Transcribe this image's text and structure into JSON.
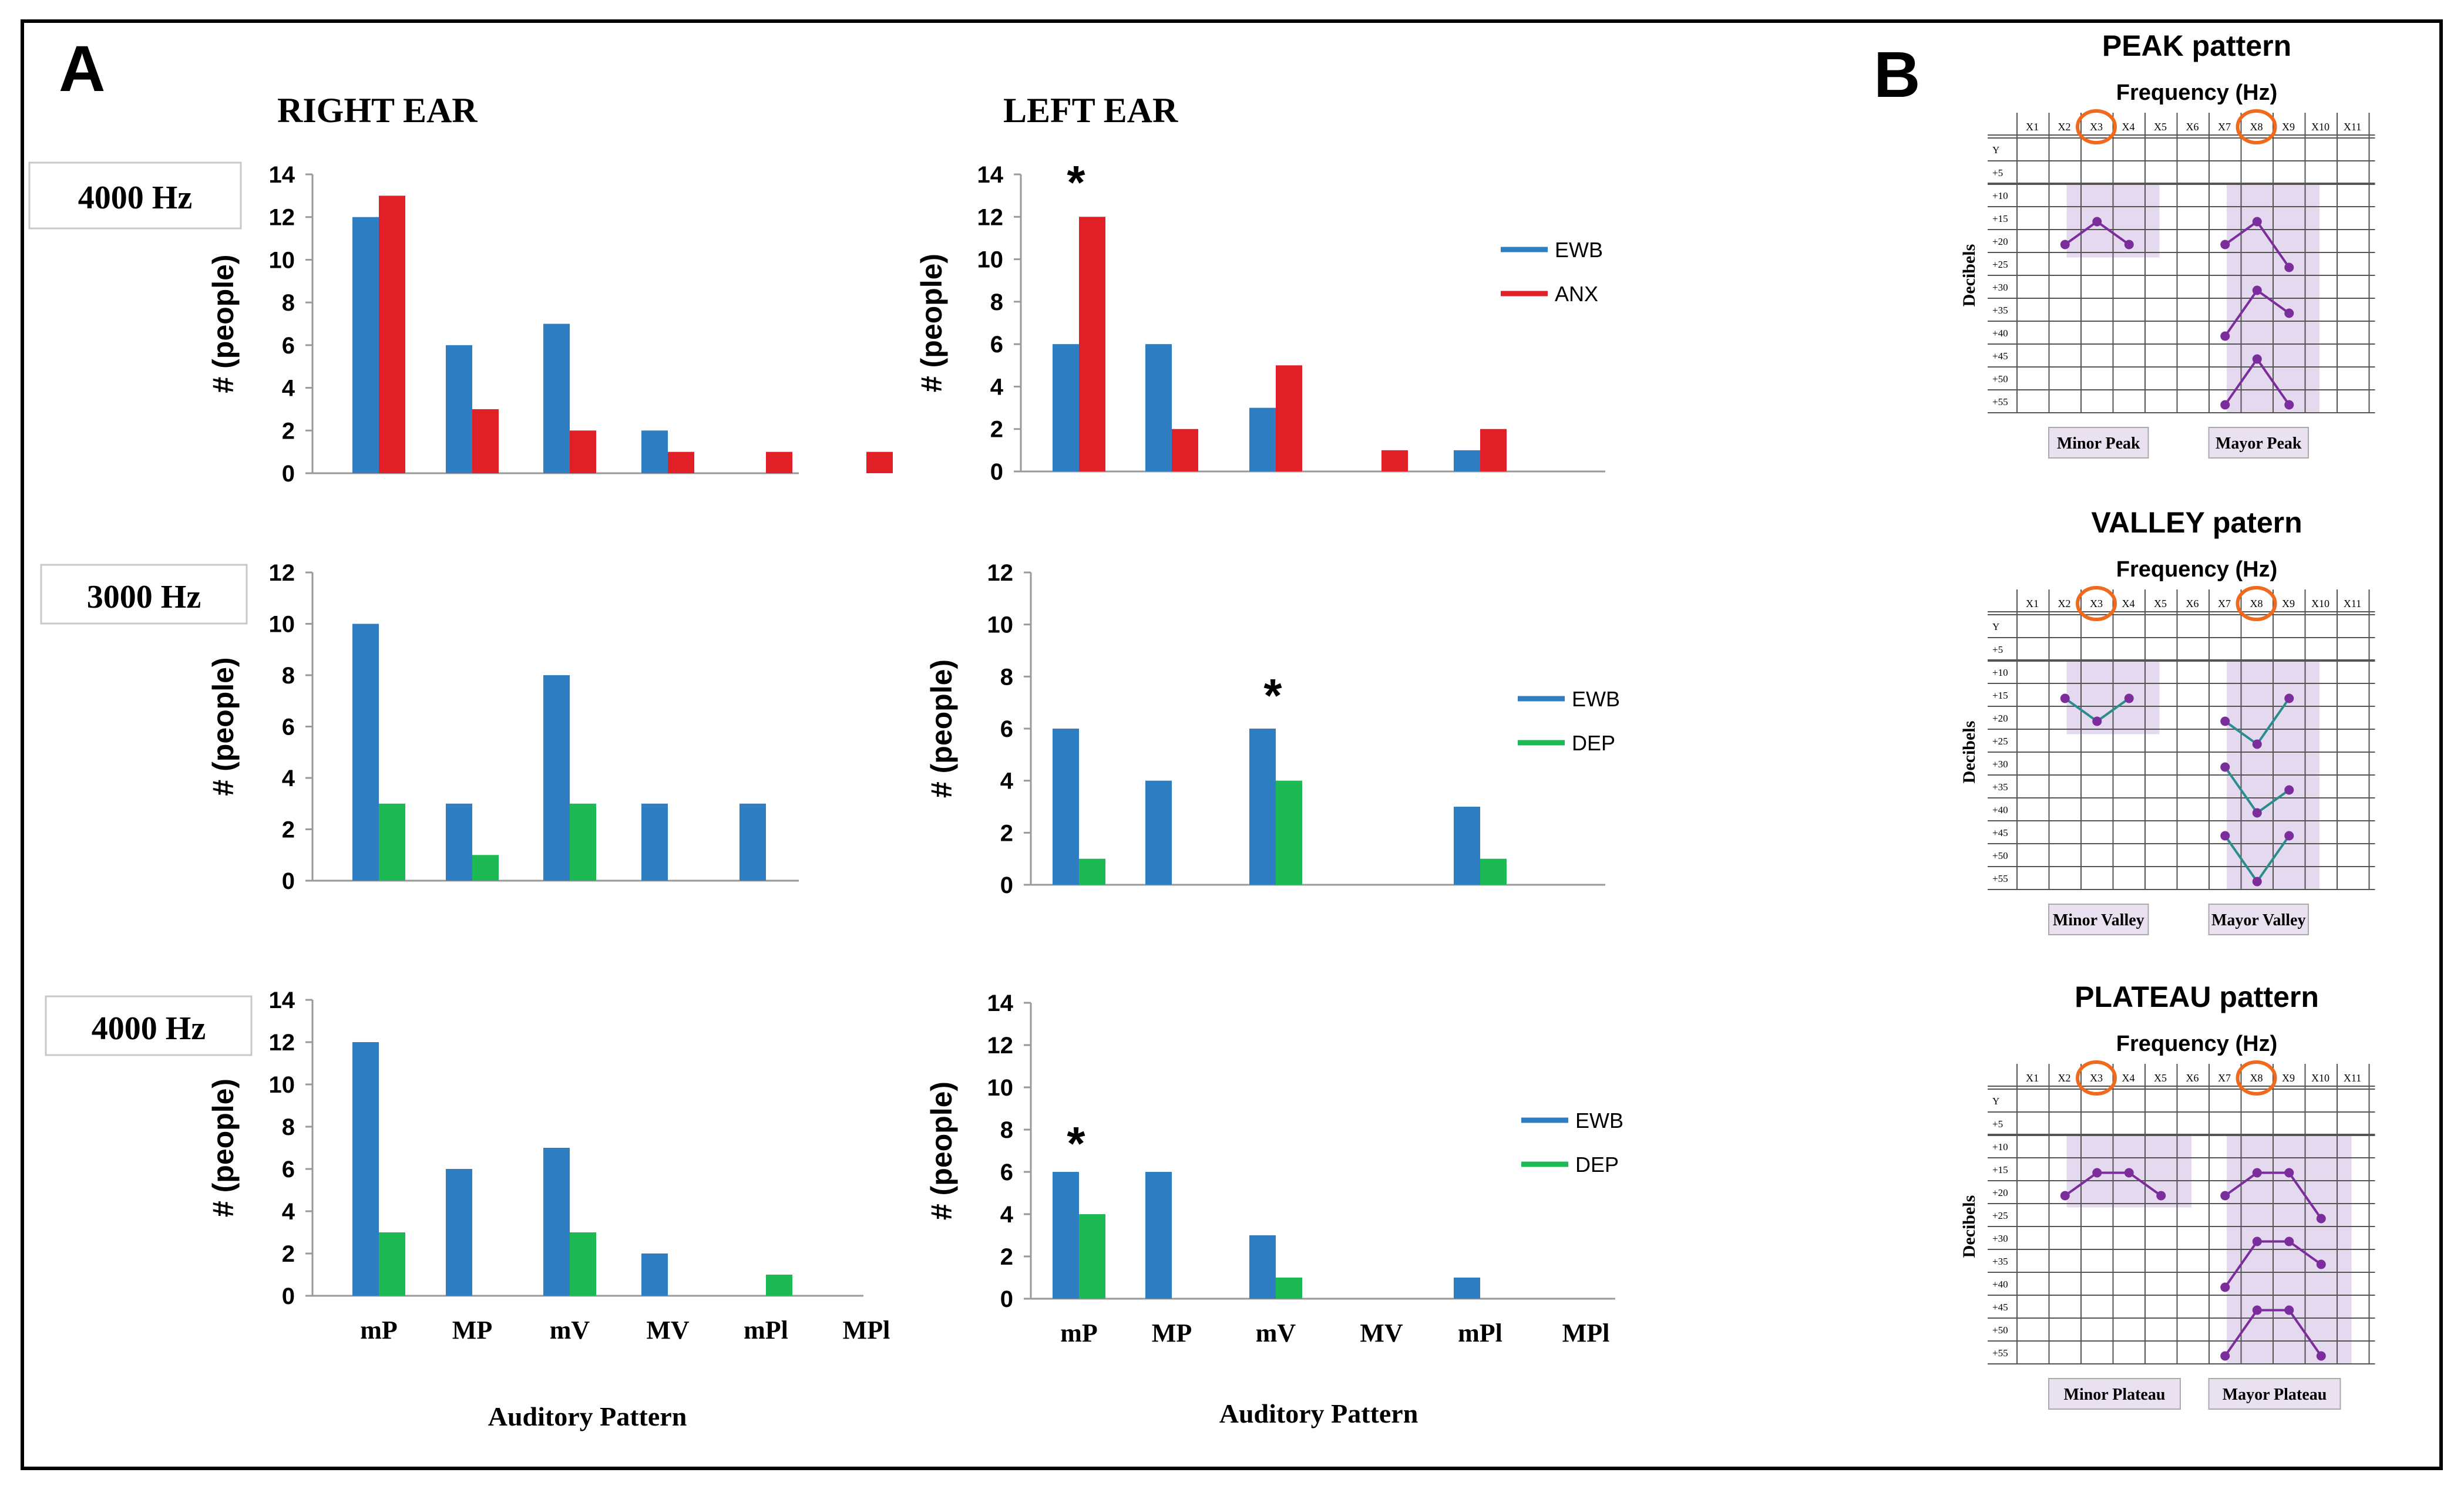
{
  "panel_labels": {
    "a": "A",
    "b": "B"
  },
  "ear_headers": {
    "right": "RIGHT EAR",
    "left": "LEFT EAR"
  },
  "row_labels": [
    "4000 Hz",
    "3000 Hz",
    "4000 Hz"
  ],
  "colors": {
    "ewb": "#2E7EC1",
    "anx": "#E01F26",
    "dep": "#1DB954",
    "purple": "#7B2D9C",
    "teal": "#2A8C8C",
    "band": "#E4D9EE",
    "label_box": "#E9E1F0",
    "orange": "#F06A1D"
  },
  "chart_data": [
    {
      "id": "r4000_right",
      "type": "bar",
      "categories": [
        "mP",
        "MP",
        "mV",
        "MV",
        "mPl",
        "MPl"
      ],
      "series": [
        {
          "name": "EWB",
          "values": [
            12,
            6,
            7,
            2,
            0,
            0
          ]
        },
        {
          "name": "ANX",
          "values": [
            13,
            3,
            2,
            1,
            1,
            1
          ]
        }
      ],
      "ylim": [
        0,
        14
      ],
      "yticks": [
        0,
        2,
        4,
        6,
        8,
        10,
        12,
        14
      ],
      "ylabel": "# (people)",
      "legend": null,
      "star": null
    },
    {
      "id": "r4000_left",
      "type": "bar",
      "categories": [
        "mP",
        "MP",
        "mV",
        "MV",
        "mPl",
        "MPl"
      ],
      "series": [
        {
          "name": "EWB",
          "values": [
            6,
            6,
            3,
            0,
            1,
            0
          ]
        },
        {
          "name": "ANX",
          "values": [
            12,
            2,
            5,
            1,
            2,
            0
          ]
        }
      ],
      "ylim": [
        0,
        14
      ],
      "yticks": [
        0,
        2,
        4,
        6,
        8,
        10,
        12,
        14
      ],
      "ylabel": "# (people)",
      "legend": [
        "EWB",
        "ANX"
      ],
      "star": {
        "category": "mP",
        "text": "*"
      }
    },
    {
      "id": "r3000_right",
      "type": "bar",
      "categories": [
        "mP",
        "MP",
        "mV",
        "MV",
        "mPl",
        "MPl"
      ],
      "series": [
        {
          "name": "EWB",
          "values": [
            10,
            3,
            8,
            3,
            3,
            0
          ]
        },
        {
          "name": "DEP",
          "values": [
            3,
            1,
            3,
            0,
            0,
            0
          ]
        }
      ],
      "ylim": [
        0,
        12
      ],
      "yticks": [
        0,
        2,
        4,
        6,
        8,
        10,
        12
      ],
      "ylabel": "# (people)",
      "legend": null,
      "star": null
    },
    {
      "id": "r3000_left",
      "type": "bar",
      "categories": [
        "mP",
        "MP",
        "mV",
        "MV",
        "mPl",
        "MPl"
      ],
      "series": [
        {
          "name": "EWB",
          "values": [
            6,
            4,
            6,
            0,
            3,
            0
          ]
        },
        {
          "name": "DEP",
          "values": [
            1,
            0,
            4,
            0,
            1,
            0
          ]
        }
      ],
      "ylim": [
        0,
        12
      ],
      "yticks": [
        0,
        2,
        4,
        6,
        8,
        10,
        12
      ],
      "ylabel": "# (people)",
      "legend": [
        "EWB",
        "DEP"
      ],
      "star": {
        "category": "mV",
        "text": "*"
      }
    },
    {
      "id": "r4000b_right",
      "type": "bar",
      "categories": [
        "mP",
        "MP",
        "mV",
        "MV",
        "mPl",
        "MPl"
      ],
      "series": [
        {
          "name": "EWB",
          "values": [
            12,
            6,
            7,
            2,
            0,
            0
          ]
        },
        {
          "name": "DEP",
          "values": [
            3,
            0,
            3,
            0,
            1,
            0
          ]
        }
      ],
      "ylim": [
        0,
        14
      ],
      "yticks": [
        0,
        2,
        4,
        6,
        8,
        10,
        12,
        14
      ],
      "ylabel": "# (people)",
      "xlabel": "Auditory  Pattern",
      "legend": null,
      "star": null
    },
    {
      "id": "r4000b_left",
      "type": "bar",
      "categories": [
        "mP",
        "MP",
        "mV",
        "MV",
        "mPl",
        "MPl"
      ],
      "series": [
        {
          "name": "EWB",
          "values": [
            6,
            6,
            3,
            0,
            1,
            0
          ]
        },
        {
          "name": "DEP",
          "values": [
            4,
            0,
            1,
            0,
            0,
            0
          ]
        }
      ],
      "ylim": [
        0,
        14
      ],
      "yticks": [
        0,
        2,
        4,
        6,
        8,
        10,
        12,
        14
      ],
      "ylabel": "# (people)",
      "xlabel": "Auditory  Pattern",
      "legend": [
        "EWB",
        "DEP"
      ],
      "star": {
        "category": "mP",
        "text": "*"
      }
    }
  ],
  "audiograms": {
    "freq_labels": [
      "X1",
      "X2",
      "X3",
      "X4",
      "X5",
      "X6",
      "X7",
      "X8",
      "X9",
      "X10",
      "X11"
    ],
    "db_labels": [
      "Y",
      "+5",
      "+10",
      "+15",
      "+20",
      "+25",
      "+30",
      "+35",
      "+40",
      "+45",
      "+50",
      "+55"
    ],
    "ylabel": "Decibels",
    "freq_title": "Frequency  (Hz)",
    "circled": [
      "X3",
      "X8"
    ],
    "panels": [
      {
        "title": "PEAK pattern",
        "line_color": "purple",
        "minor_label": "Minor Peak",
        "major_label": "Mayor Peak",
        "minor_band": [
          "X2",
          "X4"
        ],
        "major_band": [
          "X7",
          "X9"
        ],
        "minor_lines": [
          [
            [
              "X2",
              "+20"
            ],
            [
              "X3",
              "+15"
            ],
            [
              "X4",
              "+20"
            ]
          ]
        ],
        "major_lines": [
          [
            [
              "X7",
              "+20"
            ],
            [
              "X8",
              "+15"
            ],
            [
              "X9",
              "+25"
            ]
          ],
          [
            [
              "X7",
              "+40"
            ],
            [
              "X8",
              "+30"
            ],
            [
              "X9",
              "+35"
            ]
          ],
          [
            [
              "X7",
              "+55"
            ],
            [
              "X8",
              "+45"
            ],
            [
              "X9",
              "+55"
            ]
          ]
        ]
      },
      {
        "title": "VALLEY patern",
        "line_color": "teal",
        "minor_label": "Minor Valley",
        "major_label": "Mayor Valley",
        "minor_band": [
          "X2",
          "X4"
        ],
        "major_band": [
          "X7",
          "X9"
        ],
        "minor_lines": [
          [
            [
              "X2",
              "+15"
            ],
            [
              "X3",
              "+20"
            ],
            [
              "X4",
              "+15"
            ]
          ]
        ],
        "major_lines": [
          [
            [
              "X7",
              "+20"
            ],
            [
              "X8",
              "+25"
            ],
            [
              "X9",
              "+15"
            ]
          ],
          [
            [
              "X7",
              "+30"
            ],
            [
              "X8",
              "+40"
            ],
            [
              "X9",
              "+35"
            ]
          ],
          [
            [
              "X7",
              "+45"
            ],
            [
              "X8",
              "+55"
            ],
            [
              "X9",
              "+45"
            ]
          ]
        ]
      },
      {
        "title": "PLATEAU  pattern",
        "line_color": "purple",
        "minor_label": "Minor Plateau",
        "major_label": "Mayor Plateau",
        "minor_band": [
          "X2",
          "X5"
        ],
        "major_band": [
          "X7",
          "X10"
        ],
        "minor_lines": [
          [
            [
              "X2",
              "+20"
            ],
            [
              "X3",
              "+15"
            ],
            [
              "X4",
              "+15"
            ],
            [
              "X5",
              "+20"
            ]
          ]
        ],
        "major_lines": [
          [
            [
              "X7",
              "+20"
            ],
            [
              "X8",
              "+15"
            ],
            [
              "X9",
              "+15"
            ],
            [
              "X10",
              "+25"
            ]
          ],
          [
            [
              "X7",
              "+40"
            ],
            [
              "X8",
              "+30"
            ],
            [
              "X9",
              "+30"
            ],
            [
              "X10",
              "+35"
            ]
          ],
          [
            [
              "X7",
              "+55"
            ],
            [
              "X8",
              "+45"
            ],
            [
              "X9",
              "+45"
            ],
            [
              "X10",
              "+55"
            ]
          ]
        ]
      }
    ]
  }
}
